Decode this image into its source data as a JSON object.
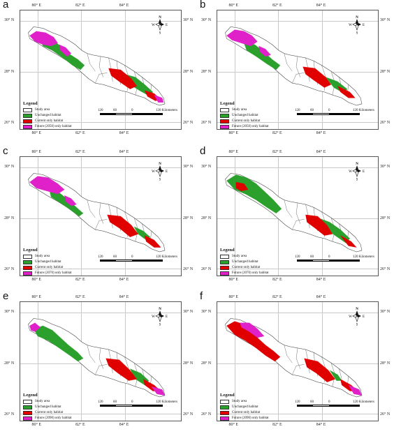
{
  "coords": {
    "top_ticks": [
      "80° E",
      "82° E",
      "84° E"
    ],
    "left_ticks": [
      "30° N",
      "28° N",
      "26° N"
    ],
    "right_ticks": [
      "30° N",
      "28° N",
      "26° N"
    ]
  },
  "compass": {
    "north": "N",
    "south": "S",
    "east": "E",
    "west": "W"
  },
  "legend": {
    "title": "Legend",
    "study_area": "Study area",
    "unchanged": "Unchanged habitat",
    "current_only": "Current only habitat"
  },
  "scale": {
    "label_120": "120",
    "label_60": "60",
    "label_0": "0",
    "label_right": "120 Kilometers"
  },
  "colors": {
    "unchanged": "#2ca02c",
    "current_only": "#e00000",
    "future_only": "#e020c8",
    "study_area": "#ffffff"
  },
  "panels": [
    {
      "letter": "a",
      "future_label": "Future (2050) only habitat"
    },
    {
      "letter": "b",
      "future_label": "Future (2050) only habitat"
    },
    {
      "letter": "c",
      "future_label": "Future (2070) only habitat"
    },
    {
      "letter": "d",
      "future_label": "Future (2070) only habitat"
    },
    {
      "letter": "e",
      "future_label": "Future (2090) only habitat"
    },
    {
      "letter": "f",
      "future_label": "Future (2090) only habitat"
    }
  ]
}
